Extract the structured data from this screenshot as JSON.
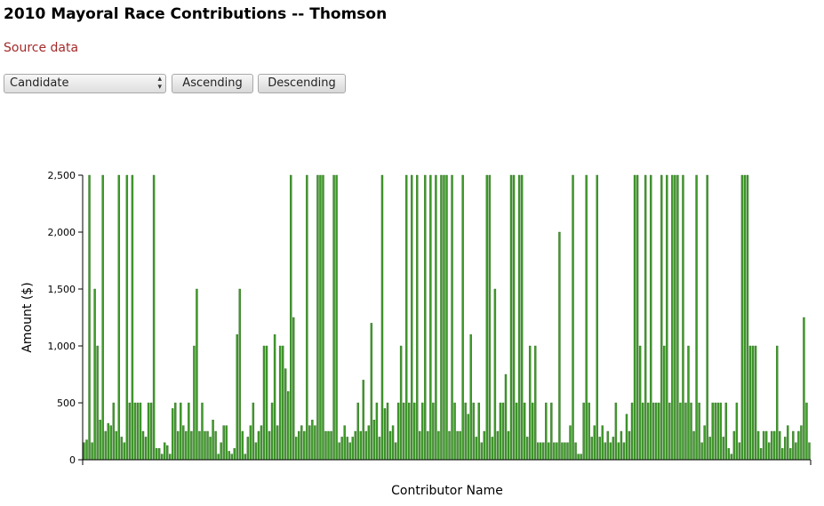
{
  "page": {
    "title": "2010 Mayoral Race Contributions -- Thomson",
    "source_link": "Source data"
  },
  "controls": {
    "sort_select_value": "Candidate",
    "ascending_label": "Ascending",
    "descending_label": "Descending"
  },
  "colors": {
    "bar_fill": "#3f9b2a",
    "bar_stroke": "#2e6e1f",
    "link": "#a52a2a"
  },
  "chart_data": {
    "type": "bar",
    "title": "",
    "xlabel": "Contributor Name",
    "ylabel": "Amount ($)",
    "ylim": [
      0,
      2500
    ],
    "yticks": [
      0,
      500,
      1000,
      1500,
      2000,
      2500
    ],
    "ytick_labels": [
      "0",
      "500",
      "1,000",
      "1,500",
      "2,000",
      "2,500"
    ],
    "grid": false,
    "legend": "none",
    "values": [
      150,
      175,
      2500,
      150,
      1500,
      1000,
      350,
      2500,
      250,
      320,
      300,
      500,
      250,
      2500,
      200,
      150,
      2500,
      500,
      2500,
      500,
      500,
      500,
      250,
      200,
      500,
      500,
      2500,
      100,
      100,
      50,
      150,
      125,
      50,
      450,
      500,
      250,
      500,
      300,
      250,
      500,
      250,
      1000,
      1500,
      250,
      500,
      250,
      250,
      200,
      350,
      250,
      50,
      150,
      300,
      300,
      75,
      50,
      100,
      1100,
      1500,
      250,
      50,
      200,
      300,
      500,
      150,
      250,
      300,
      1000,
      1000,
      250,
      500,
      1100,
      300,
      1000,
      1000,
      800,
      600,
      2500,
      1250,
      200,
      250,
      300,
      250,
      2500,
      300,
      350,
      300,
      2500,
      2500,
      2500,
      250,
      250,
      250,
      2500,
      2500,
      150,
      200,
      300,
      200,
      150,
      200,
      250,
      500,
      250,
      700,
      250,
      300,
      1200,
      350,
      500,
      200,
      2500,
      450,
      500,
      250,
      300,
      150,
      500,
      1000,
      500,
      2500,
      500,
      2500,
      500,
      2500,
      250,
      500,
      2500,
      250,
      2500,
      500,
      2500,
      250,
      2500,
      2500,
      2500,
      250,
      2500,
      500,
      250,
      250,
      2500,
      500,
      400,
      1100,
      500,
      200,
      500,
      150,
      250,
      2500,
      2500,
      200,
      1500,
      250,
      500,
      500,
      750,
      250,
      2500,
      2500,
      500,
      2500,
      2500,
      500,
      200,
      1000,
      500,
      1000,
      150,
      150,
      150,
      500,
      150,
      500,
      150,
      150,
      2000,
      150,
      150,
      150,
      300,
      2500,
      150,
      50,
      50,
      500,
      2500,
      500,
      200,
      300,
      2500,
      200,
      300,
      150,
      250,
      150,
      200,
      500,
      150,
      250,
      150,
      400,
      250,
      500,
      2500,
      2500,
      1000,
      500,
      2500,
      500,
      2500,
      500,
      500,
      500,
      2500,
      1000,
      2500,
      500,
      2500,
      2500,
      2500,
      500,
      2500,
      500,
      1000,
      500,
      250,
      2500,
      500,
      150,
      300,
      2500,
      200,
      500,
      500,
      500,
      500,
      200,
      500,
      100,
      50,
      250,
      500,
      150,
      2500,
      2500,
      2500,
      1000,
      1000,
      1000,
      250,
      100,
      250,
      250,
      150,
      250,
      250,
      1000,
      250,
      100,
      200,
      300,
      100,
      250,
      150,
      250,
      300,
      1250,
      500,
      150
    ]
  }
}
